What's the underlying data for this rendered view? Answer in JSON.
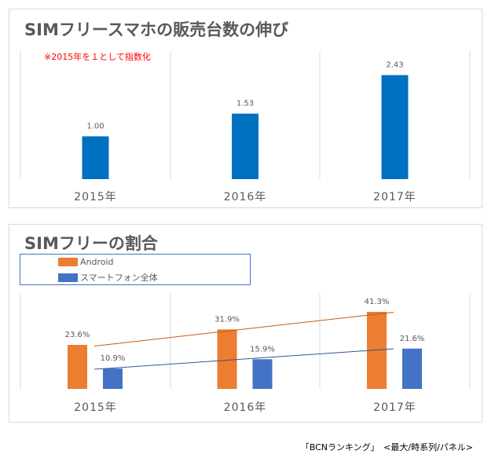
{
  "chart_data": [
    {
      "type": "bar",
      "title": "SIMフリースマホの販売台数の伸び",
      "note": "※2015年を１として指数化",
      "categories": [
        "2015年",
        "2016年",
        "2017年"
      ],
      "values": [
        1.0,
        1.53,
        2.43
      ],
      "labels": [
        "1.00",
        "1.53",
        "2.43"
      ],
      "color": "#0070c0",
      "ylim": [
        0,
        2.9
      ]
    },
    {
      "type": "bar",
      "title": "SIMフリーの割合",
      "categories": [
        "2015年",
        "2016年",
        "2017年"
      ],
      "legend_position": "top-left",
      "series": [
        {
          "name": "Android",
          "values": [
            23.6,
            31.9,
            41.3
          ],
          "labels": [
            "23.6%",
            "31.9%",
            "41.3%"
          ],
          "color": "#ed7d31",
          "trend_color": "#c55a11"
        },
        {
          "name": "スマートフォン全体",
          "values": [
            10.9,
            15.9,
            21.6
          ],
          "labels": [
            "10.9%",
            "15.9%",
            "21.6%"
          ],
          "color": "#4472c4",
          "trend_color": "#2f5597"
        }
      ],
      "trendlines": true,
      "ylim": [
        0,
        51
      ]
    }
  ],
  "footer": "「BCNランキング」　<最大/時系列/パネル>"
}
